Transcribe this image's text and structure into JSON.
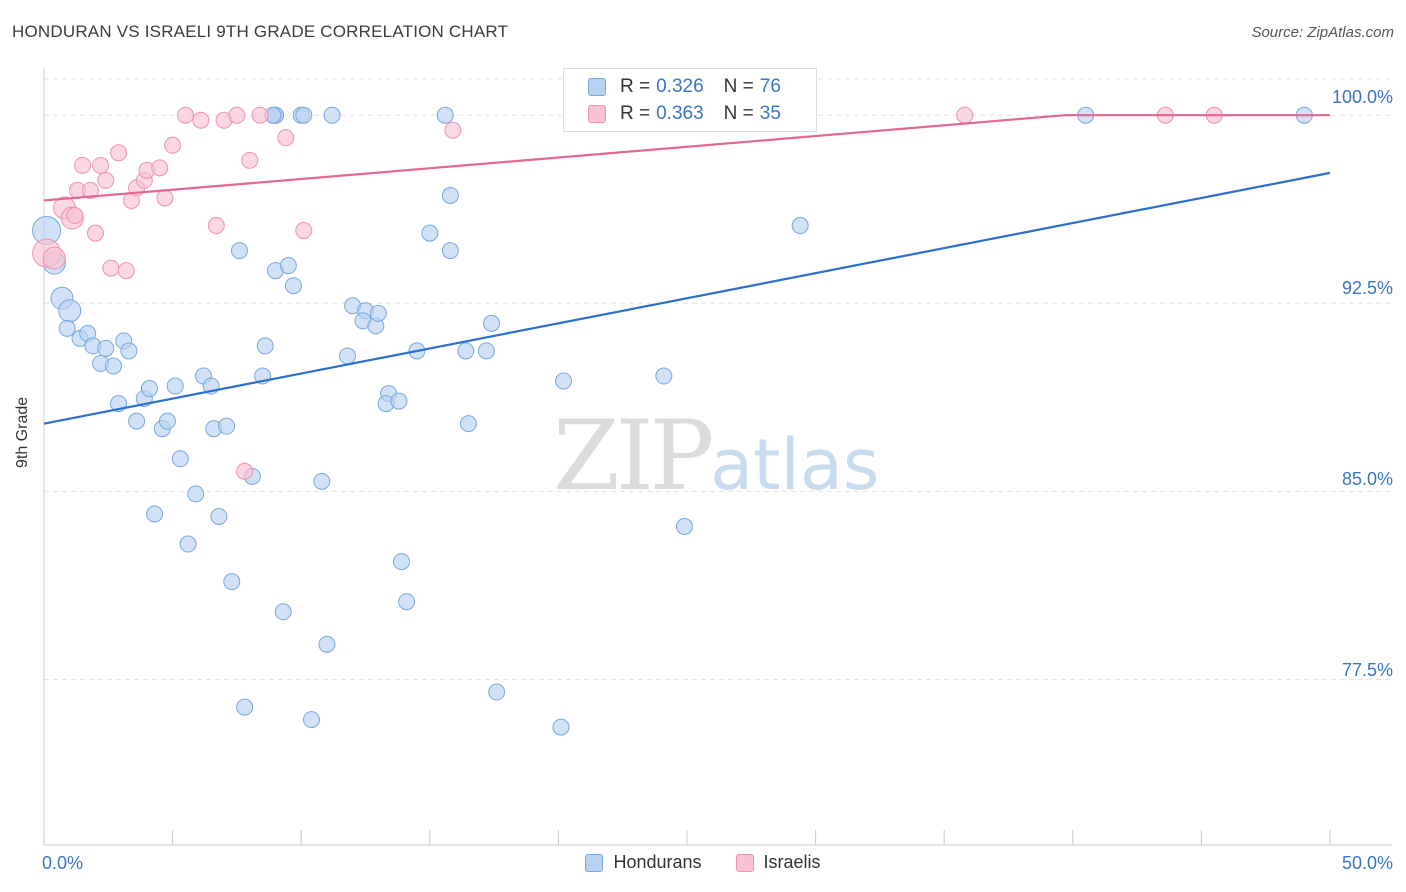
{
  "title": "HONDURAN VS ISRAELI 9TH GRADE CORRELATION CHART",
  "source": "Source: ZipAtlas.com",
  "watermark": {
    "zip": "ZIP",
    "atlas": "atlas"
  },
  "colors": {
    "blue_fill": "#b8d3f2",
    "blue_stroke": "#7aa7dd",
    "blue_line": "#2d6fcc",
    "pink_fill": "#f8c2d2",
    "pink_stroke": "#ee93ae",
    "pink_line": "#e56690",
    "grid": "#e3e3e3",
    "axis_text": "#3a75c4"
  },
  "legend": {
    "rows": [
      {
        "r_label": "R =",
        "r_value": "0.326",
        "n_label": "N =",
        "n_value": "76"
      },
      {
        "r_label": "R =",
        "r_value": "0.363",
        "n_label": "N =",
        "n_value": "35"
      }
    ]
  },
  "bottom_legend": [
    "Hondurans",
    "Israelis"
  ],
  "chart_data": {
    "type": "scatter",
    "title": "HONDURAN VS ISRAELI 9TH GRADE CORRELATION CHART",
    "ylabel": "9th Grade",
    "xlabel": "",
    "xlim": [
      0,
      50
    ],
    "ylim": [
      70.9,
      102.4
    ],
    "x_tick_labels": [
      "0.0%",
      "50.0%"
    ],
    "y_ticks": [
      77.5,
      85.0,
      92.5,
      100.0
    ],
    "y_tick_labels": [
      "77.5%",
      "85.0%",
      "92.5%",
      "100.0%"
    ],
    "grid": true,
    "legend_position": "top-center",
    "series": [
      {
        "name": "Hondurans",
        "trend": {
          "x": [
            0,
            50
          ],
          "y": [
            87.7,
            97.7
          ]
        },
        "points": [
          [
            0.1,
            95.4
          ],
          [
            0.4,
            94.1
          ],
          [
            0.7,
            92.7
          ],
          [
            1.0,
            92.2
          ],
          [
            0.9,
            91.5
          ],
          [
            1.4,
            91.1
          ],
          [
            1.7,
            91.3
          ],
          [
            1.9,
            90.8
          ],
          [
            2.4,
            90.7
          ],
          [
            2.2,
            90.1
          ],
          [
            2.7,
            90.0
          ],
          [
            3.1,
            91.0
          ],
          [
            3.3,
            90.6
          ],
          [
            2.9,
            88.5
          ],
          [
            3.6,
            87.8
          ],
          [
            3.9,
            88.7
          ],
          [
            4.1,
            89.1
          ],
          [
            4.6,
            87.5
          ],
          [
            4.8,
            87.8
          ],
          [
            5.1,
            89.2
          ],
          [
            5.3,
            86.3
          ],
          [
            5.9,
            84.9
          ],
          [
            6.2,
            89.6
          ],
          [
            6.5,
            89.2
          ],
          [
            6.6,
            87.5
          ],
          [
            7.1,
            87.6
          ],
          [
            5.6,
            82.9
          ],
          [
            4.3,
            84.1
          ],
          [
            6.8,
            84.0
          ],
          [
            7.3,
            81.4
          ],
          [
            7.6,
            94.6
          ],
          [
            8.1,
            85.6
          ],
          [
            8.6,
            90.8
          ],
          [
            8.5,
            89.6
          ],
          [
            9.0,
            100.0
          ],
          [
            9.0,
            100.0
          ],
          [
            10.0,
            100.0
          ],
          [
            10.1,
            100.0
          ],
          [
            11.2,
            100.0
          ],
          [
            8.9,
            100.0
          ],
          [
            9.0,
            93.8
          ],
          [
            9.5,
            94.0
          ],
          [
            9.7,
            93.2
          ],
          [
            9.3,
            80.2
          ],
          [
            10.8,
            85.4
          ],
          [
            11.0,
            78.9
          ],
          [
            10.4,
            75.9
          ],
          [
            7.8,
            76.4
          ],
          [
            12.0,
            92.4
          ],
          [
            12.5,
            92.2
          ],
          [
            12.4,
            91.8
          ],
          [
            12.9,
            91.6
          ],
          [
            13.0,
            92.1
          ],
          [
            11.8,
            90.4
          ],
          [
            13.4,
            88.9
          ],
          [
            13.3,
            88.5
          ],
          [
            13.8,
            88.6
          ],
          [
            13.9,
            82.2
          ],
          [
            14.1,
            80.6
          ],
          [
            14.5,
            90.6
          ],
          [
            15.0,
            95.3
          ],
          [
            15.8,
            96.8
          ],
          [
            15.8,
            94.6
          ],
          [
            15.6,
            100.0
          ],
          [
            16.4,
            90.6
          ],
          [
            16.5,
            87.7
          ],
          [
            17.2,
            90.6
          ],
          [
            17.4,
            91.7
          ],
          [
            17.6,
            77.0
          ],
          [
            20.1,
            75.6
          ],
          [
            20.2,
            89.4
          ],
          [
            24.1,
            89.6
          ],
          [
            24.9,
            83.6
          ],
          [
            29.4,
            95.6
          ],
          [
            40.5,
            100.0
          ],
          [
            49.0,
            100.0
          ]
        ]
      },
      {
        "name": "Israelis",
        "trend": {
          "x": [
            0,
            39.7,
            50
          ],
          "y": [
            96.6,
            100.0,
            100.0
          ]
        },
        "points": [
          [
            0.1,
            94.5
          ],
          [
            0.4,
            94.3
          ],
          [
            0.8,
            96.3
          ],
          [
            1.1,
            95.9
          ],
          [
            1.2,
            96.0
          ],
          [
            1.3,
            97.0
          ],
          [
            1.5,
            98.0
          ],
          [
            1.8,
            97.0
          ],
          [
            2.0,
            95.3
          ],
          [
            2.2,
            98.0
          ],
          [
            2.4,
            97.4
          ],
          [
            2.6,
            93.9
          ],
          [
            2.9,
            98.5
          ],
          [
            3.2,
            93.8
          ],
          [
            3.4,
            96.6
          ],
          [
            3.6,
            97.1
          ],
          [
            3.9,
            97.4
          ],
          [
            4.0,
            97.8
          ],
          [
            4.5,
            97.9
          ],
          [
            4.7,
            96.7
          ],
          [
            5.0,
            98.8
          ],
          [
            5.5,
            100.0
          ],
          [
            6.1,
            99.8
          ],
          [
            6.7,
            95.6
          ],
          [
            7.0,
            99.8
          ],
          [
            7.5,
            100.0
          ],
          [
            8.0,
            98.2
          ],
          [
            8.4,
            100.0
          ],
          [
            9.4,
            99.1
          ],
          [
            10.1,
            95.4
          ],
          [
            7.8,
            85.8
          ],
          [
            15.9,
            99.4
          ],
          [
            35.8,
            100.0
          ],
          [
            43.6,
            100.0
          ],
          [
            45.5,
            100.0
          ]
        ]
      }
    ]
  }
}
